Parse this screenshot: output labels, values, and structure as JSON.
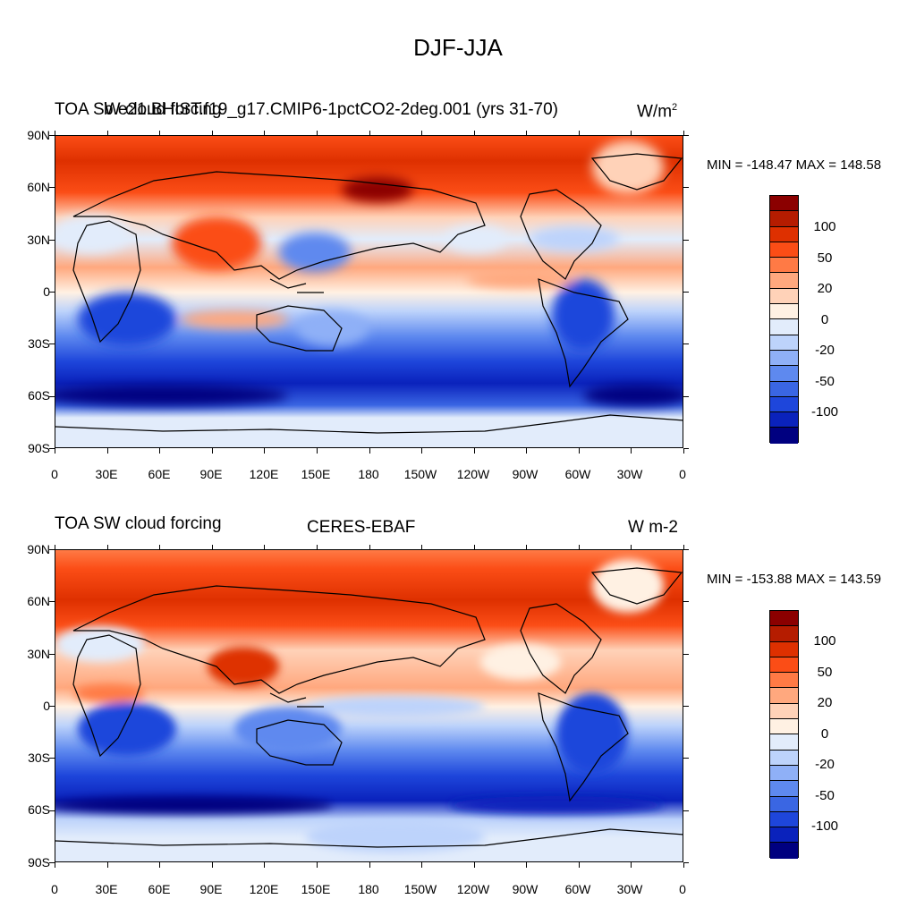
{
  "title": "DJF-JJA",
  "panels": [
    {
      "left_title": "TOA SW cloud forcing",
      "center_title": "b.e21.BHIST.f19_g17.CMIP6-1pctCO2-2deg.001 (yrs 31-70)",
      "units_base": "W/m",
      "units_sup": "2",
      "minmax": "MIN = -148.47 MAX = 148.58"
    },
    {
      "left_title": "TOA SW cloud forcing",
      "center_title": "CERES-EBAF",
      "units_base": "W m-2",
      "units_sup": "",
      "minmax": "MIN = -153.88 MAX = 143.59"
    }
  ],
  "lat_labels": [
    "90N",
    "60N",
    "30N",
    "0",
    "30S",
    "60S",
    "90S"
  ],
  "lon_labels": [
    "0",
    "30E",
    "60E",
    "90E",
    "120E",
    "150E",
    "180",
    "150W",
    "120W",
    "90W",
    "60W",
    "30W",
    "0"
  ],
  "colorbar": {
    "colors": [
      "#8b0000",
      "#b51c00",
      "#de3000",
      "#fb4d16",
      "#ff7a45",
      "#ffa87e",
      "#ffd2b8",
      "#fff1e3",
      "#e2ecfb",
      "#bdd3fb",
      "#8fb0f7",
      "#5e89ef",
      "#3a66e3",
      "#1e46db",
      "#0a22bc",
      "#000080"
    ],
    "labels": [
      "100",
      "50",
      "20",
      "0",
      "-20",
      "-50",
      "-100"
    ]
  }
}
